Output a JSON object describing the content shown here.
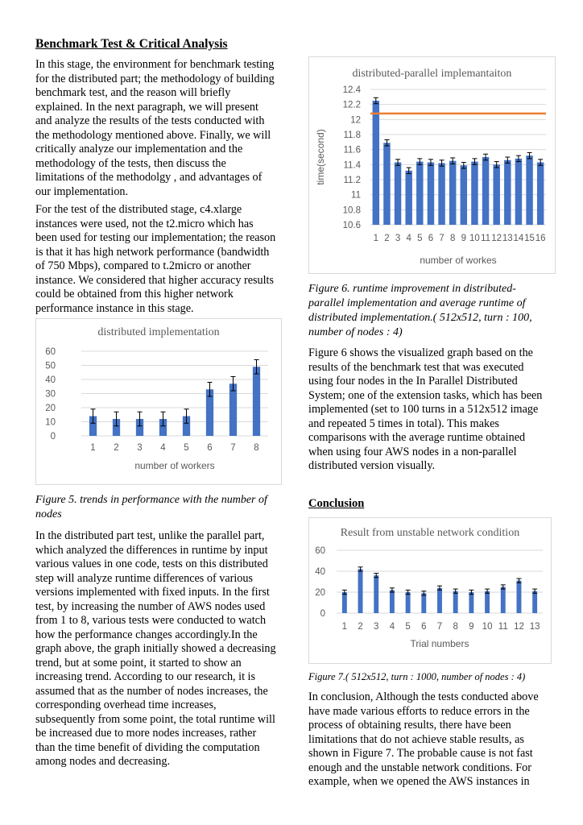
{
  "left": {
    "heading": "Benchmark Test & Critical Analysis",
    "para1": "In this stage, the environment for benchmark testing for the distributed part; the methodology of building benchmark test, and the reason will briefly explained. In the next paragraph, we will present and analyze the results of the tests conducted with the methodology mentioned above. Finally, we will critically analyze our implementation and the methodology of the tests, then discuss the limitations of the methodolgy , and advantages of our implementation.",
    "para2": "For the test of the distributed stage, c4.xlarge instances were used, not the t2.micro which has been used for testing our implementation; the reason is that it has high network performance (bandwidth of 750 Mbps), compared to t.2micro or another instance. We considered that higher accuracy results could be obtained from this higher network performance instance in this stage.",
    "fig5_caption": "Figure 5. trends in performance with the number of nodes",
    "para3": "In the distributed part test, unlike the parallel part, which analyzed the differences in runtime by input various values in one code, tests on this distributed step will analyze runtime differences of various versions implemented with fixed inputs. In the first test, by increasing the number of AWS nodes used from 1 to 8, various tests were conducted to watch how the performance changes accordingly.In the graph above, the graph initially showed a decreasing trend, but at some point, it started to show an increasing trend. According to our research, it is assumed that as the number of nodes increases, the corresponding overhead time increases, subsequently from some point, the total runtime will be increased due to more nodes increases, rather than the time benefit of dividing the computation among nodes and decreasing."
  },
  "right": {
    "fig6_caption": "Figure 6. runtime improvement in distributed-parallel implementation and average runtime of distributed implementation.( 512x512, turn : 100, number of nodes : 4)",
    "para4": "Figure 6 shows the visualized graph based on the results of the benchmark test that was executed using four nodes in the In Parallel Distributed System; one of the extension tasks, which has been implemented (set to 100 turns in a 512x512 image and repeated 5 times in total). This makes comparisons with the average runtime obtained when using four AWS nodes in a non-parallel distributed version visually.",
    "conclusion_heading": "Conclusion",
    "fig7_caption": "Figure 7.( 512x512, turn : 1000, number of nodes : 4)",
    "para5": "In conclusion, Although the tests conducted above have made various efforts to reduce errors in the process of obtaining results, there have been limitations that do not achieve stable results, as shown in Figure 7. The probable cause is not fast enough and the unstable network conditions. For example, when we opened the AWS instances in"
  },
  "chart_data": [
    {
      "id": "fig5",
      "type": "bar",
      "title": "distributed implementation",
      "xlabel": "number of workers",
      "ylabel": "",
      "categories": [
        "1",
        "2",
        "3",
        "4",
        "5",
        "6",
        "7",
        "8"
      ],
      "values": [
        14,
        12,
        12,
        12,
        14,
        33,
        37,
        49
      ],
      "errors": [
        5,
        5,
        5,
        5,
        5,
        5,
        5,
        5
      ],
      "ylim": [
        0,
        60
      ],
      "yticks": [
        "0",
        "10",
        "20",
        "30",
        "40",
        "50",
        "60"
      ],
      "grid": true,
      "bar_color": "#4472c4"
    },
    {
      "id": "fig6",
      "type": "bar",
      "title": "distributed-parallel implemantaiton",
      "xlabel": "number of workes",
      "ylabel": "time(second)",
      "categories": [
        "1",
        "2",
        "3",
        "4",
        "5",
        "6",
        "7",
        "8",
        "9",
        "10",
        "11",
        "12",
        "13",
        "14",
        "15",
        "16"
      ],
      "values": [
        12.25,
        11.69,
        11.43,
        11.32,
        11.44,
        11.43,
        11.42,
        11.45,
        11.39,
        11.44,
        11.5,
        11.4,
        11.46,
        11.48,
        11.52,
        11.43
      ],
      "errors": [
        0.04,
        0.04,
        0.04,
        0.04,
        0.04,
        0.04,
        0.04,
        0.04,
        0.04,
        0.04,
        0.04,
        0.04,
        0.04,
        0.04,
        0.04,
        0.04
      ],
      "reference_line": 12.08,
      "reference_color": "#ed7d31",
      "ylim": [
        10.6,
        12.4
      ],
      "yticks": [
        "10.6",
        "10.8",
        "11",
        "11.2",
        "11.4",
        "11.6",
        "11.8",
        "12",
        "12.2",
        "12.4"
      ],
      "grid": true,
      "bar_color": "#4472c4"
    },
    {
      "id": "fig7",
      "type": "bar",
      "title": "Result from unstable network condition",
      "xlabel": "Trial numbers",
      "ylabel": "",
      "categories": [
        "1",
        "2",
        "3",
        "4",
        "5",
        "6",
        "7",
        "8",
        "9",
        "10",
        "11",
        "12",
        "13"
      ],
      "values": [
        20,
        42,
        36,
        22,
        20,
        19,
        24,
        21,
        20,
        21,
        25,
        31,
        21
      ],
      "errors": [
        2,
        2,
        2,
        2,
        2,
        2,
        2,
        2,
        2,
        2,
        2,
        2,
        2
      ],
      "ylim": [
        0,
        60
      ],
      "yticks": [
        "0",
        "20",
        "40",
        "60"
      ],
      "grid": true,
      "bar_color": "#4472c4"
    }
  ]
}
